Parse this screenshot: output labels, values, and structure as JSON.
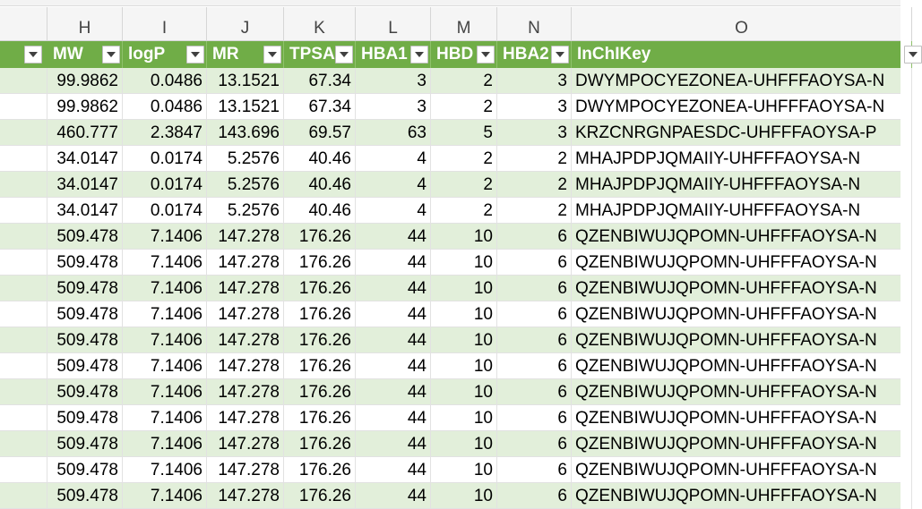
{
  "column_letters": [
    "H",
    "I",
    "J",
    "K",
    "L",
    "M",
    "N",
    "O"
  ],
  "table_headers": [
    "MW",
    "logP",
    "MR",
    "TPSA",
    "HBA1",
    "HBD",
    "HBA2",
    "InChIKey"
  ],
  "rows": [
    [
      "99.9862",
      "0.0486",
      "13.1521",
      "67.34",
      "3",
      "2",
      "3",
      "DWYMPOCYEZONEA-UHFFFAOYSA-N"
    ],
    [
      "99.9862",
      "0.0486",
      "13.1521",
      "67.34",
      "3",
      "2",
      "3",
      "DWYMPOCYEZONEA-UHFFFAOYSA-N"
    ],
    [
      "460.777",
      "2.3847",
      "143.696",
      "69.57",
      "63",
      "5",
      "3",
      "KRZCNRGNPAESDC-UHFFFAOYSA-P"
    ],
    [
      "34.0147",
      "0.0174",
      "5.2576",
      "40.46",
      "4",
      "2",
      "2",
      "MHAJPDPJQMAIIY-UHFFFAOYSA-N"
    ],
    [
      "34.0147",
      "0.0174",
      "5.2576",
      "40.46",
      "4",
      "2",
      "2",
      "MHAJPDPJQMAIIY-UHFFFAOYSA-N"
    ],
    [
      "34.0147",
      "0.0174",
      "5.2576",
      "40.46",
      "4",
      "2",
      "2",
      "MHAJPDPJQMAIIY-UHFFFAOYSA-N"
    ],
    [
      "509.478",
      "7.1406",
      "147.278",
      "176.26",
      "44",
      "10",
      "6",
      "QZENBIWUJQPOMN-UHFFFAOYSA-N"
    ],
    [
      "509.478",
      "7.1406",
      "147.278",
      "176.26",
      "44",
      "10",
      "6",
      "QZENBIWUJQPOMN-UHFFFAOYSA-N"
    ],
    [
      "509.478",
      "7.1406",
      "147.278",
      "176.26",
      "44",
      "10",
      "6",
      "QZENBIWUJQPOMN-UHFFFAOYSA-N"
    ],
    [
      "509.478",
      "7.1406",
      "147.278",
      "176.26",
      "44",
      "10",
      "6",
      "QZENBIWUJQPOMN-UHFFFAOYSA-N"
    ],
    [
      "509.478",
      "7.1406",
      "147.278",
      "176.26",
      "44",
      "10",
      "6",
      "QZENBIWUJQPOMN-UHFFFAOYSA-N"
    ],
    [
      "509.478",
      "7.1406",
      "147.278",
      "176.26",
      "44",
      "10",
      "6",
      "QZENBIWUJQPOMN-UHFFFAOYSA-N"
    ],
    [
      "509.478",
      "7.1406",
      "147.278",
      "176.26",
      "44",
      "10",
      "6",
      "QZENBIWUJQPOMN-UHFFFAOYSA-N"
    ],
    [
      "509.478",
      "7.1406",
      "147.278",
      "176.26",
      "44",
      "10",
      "6",
      "QZENBIWUJQPOMN-UHFFFAOYSA-N"
    ],
    [
      "509.478",
      "7.1406",
      "147.278",
      "176.26",
      "44",
      "10",
      "6",
      "QZENBIWUJQPOMN-UHFFFAOYSA-N"
    ],
    [
      "509.478",
      "7.1406",
      "147.278",
      "176.26",
      "44",
      "10",
      "6",
      "QZENBIWUJQPOMN-UHFFFAOYSA-N"
    ],
    [
      "509.478",
      "7.1406",
      "147.278",
      "176.26",
      "44",
      "10",
      "6",
      "QZENBIWUJQPOMN-UHFFFAOYSA-N"
    ]
  ],
  "colors": {
    "header_green": "#70ad47",
    "band_light_green": "#e2efda",
    "gridline": "#e2e2e2"
  },
  "icons": {
    "filter_button": "dropdown-arrow-icon"
  }
}
